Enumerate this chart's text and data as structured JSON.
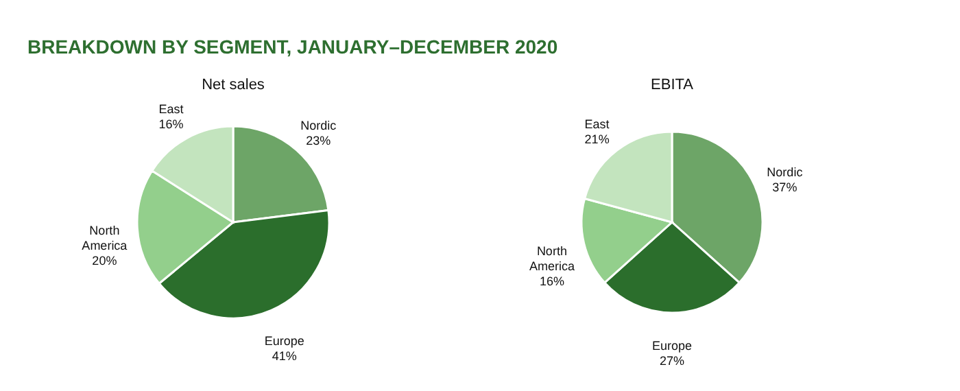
{
  "chart_data": [
    {
      "type": "pie",
      "title": "Net sales",
      "annotations": [
        "BREAKDOWN BY SEGMENT, JANUARY–DECEMBER 2020"
      ],
      "categories": [
        "Nordic",
        "Europe",
        "North America",
        "East"
      ],
      "values": [
        23,
        41,
        20,
        16
      ],
      "value_labels": [
        "23%",
        "41%",
        "20%",
        "16%"
      ],
      "colors": [
        "#6da567",
        "#2b6e2c",
        "#93cf8c",
        "#c3e4be"
      ]
    },
    {
      "type": "pie",
      "title": "EBITA",
      "categories": [
        "Nordic",
        "Europe",
        "North America",
        "East"
      ],
      "values": [
        37,
        27,
        16,
        21
      ],
      "value_labels": [
        "37%",
        "27%",
        "16%",
        "21%"
      ],
      "colors": [
        "#6da567",
        "#2b6e2c",
        "#93cf8c",
        "#c3e4be"
      ]
    }
  ]
}
